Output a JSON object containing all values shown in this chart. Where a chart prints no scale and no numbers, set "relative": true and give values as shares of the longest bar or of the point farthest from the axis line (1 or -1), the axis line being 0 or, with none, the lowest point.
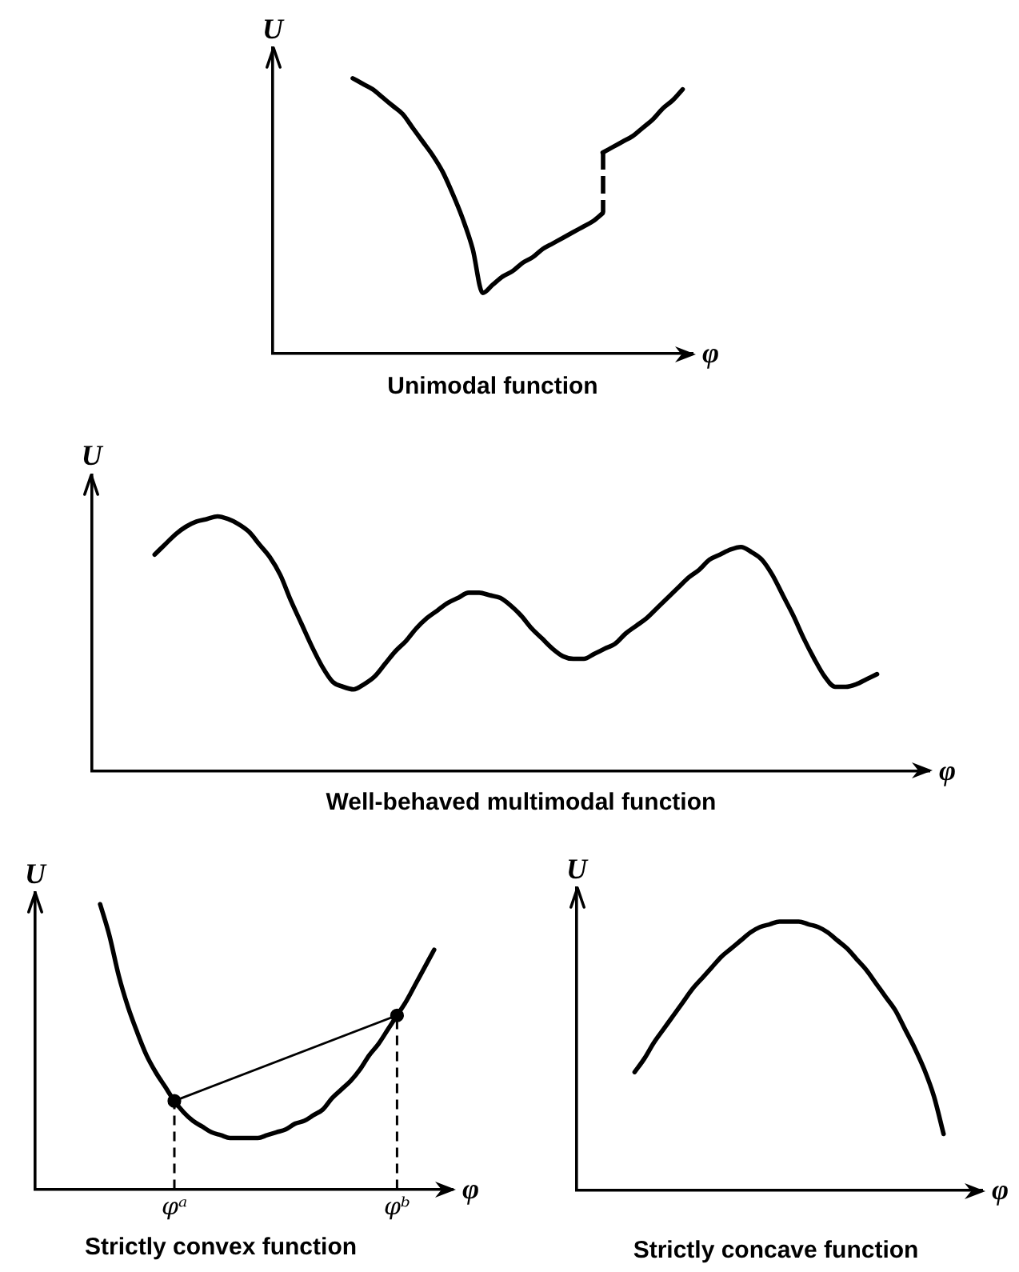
{
  "chart_data": [
    {
      "type": "line",
      "title": "Unimodal function",
      "xlabel": "φ",
      "ylabel": "U",
      "relative": true,
      "categories": [
        null,
        null,
        null,
        null,
        null,
        null,
        null,
        null,
        null,
        null,
        null,
        null,
        null,
        null,
        null,
        null,
        null,
        null,
        null,
        null,
        null,
        null,
        null,
        null,
        null,
        null,
        null,
        null,
        null,
        null,
        null,
        null,
        null,
        null,
        null,
        null,
        null,
        null,
        null,
        null,
        null,
        null,
        null
      ],
      "series": [
        {
          "color": "#000000",
          "values": [
            null,
            null,
            null,
            null,
            null,
            null,
            null,
            null,
            1,
            0.98,
            0.96,
            0.93,
            0.9,
            0.87,
            0.82,
            0.77,
            0.72,
            0.66,
            0.58,
            0.49,
            0.38,
            0.22,
            0.25,
            0.28,
            0.3,
            0.33,
            0.35,
            0.38,
            0.4,
            0.42,
            0.44,
            0.46,
            0.48,
            0.51,
            null,
            null,
            null,
            null,
            null,
            null,
            null,
            null,
            null
          ]
        },
        {
          "color": "#000000",
          "values": [
            null,
            null,
            null,
            null,
            null,
            null,
            null,
            null,
            null,
            null,
            null,
            null,
            null,
            null,
            null,
            null,
            null,
            null,
            null,
            null,
            null,
            null,
            null,
            null,
            null,
            null,
            null,
            null,
            null,
            null,
            null,
            null,
            null,
            0.73,
            0.75,
            0.77,
            0.79,
            0.82,
            0.85,
            0.89,
            0.92,
            0.96,
            null
          ]
        }
      ]
    },
    {
      "type": "line",
      "title": "Well-behaved multimodal function",
      "xlabel": "φ",
      "ylabel": "U",
      "relative": true,
      "categories": [
        null,
        null,
        null,
        null,
        null,
        null,
        null,
        null,
        null,
        null,
        null,
        null,
        null,
        null,
        null,
        null,
        null,
        null,
        null,
        null,
        null,
        null,
        null,
        null,
        null,
        null,
        null,
        null,
        null,
        null,
        null,
        null,
        null,
        null,
        null,
        null,
        null,
        null,
        null,
        null,
        null,
        null,
        null,
        null,
        null,
        null,
        null,
        null,
        null,
        null,
        null,
        null,
        null,
        null,
        null,
        null,
        null,
        null,
        null,
        null,
        null,
        null,
        null,
        null,
        null,
        null,
        null,
        null,
        null,
        null,
        null,
        null,
        null,
        null,
        null,
        null,
        null,
        null,
        null,
        null,
        null
      ],
      "series": [
        {
          "color": "#000000",
          "values": [
            null,
            null,
            null,
            null,
            null,
            null,
            0.85,
            0.89,
            0.93,
            0.96,
            0.98,
            0.99,
            1,
            0.99,
            0.97,
            0.94,
            0.89,
            0.84,
            0.77,
            0.67,
            0.58,
            0.49,
            0.41,
            0.35,
            0.33,
            0.32,
            0.34,
            0.37,
            0.42,
            0.47,
            0.51,
            0.56,
            0.6,
            0.63,
            0.66,
            0.68,
            0.7,
            0.7,
            0.69,
            0.68,
            0.65,
            0.61,
            0.56,
            0.52,
            0.48,
            0.45,
            0.44,
            0.44,
            0.46,
            0.48,
            0.5,
            0.54,
            0.57,
            0.6,
            0.64,
            0.68,
            0.72,
            0.76,
            0.79,
            0.83,
            0.85,
            0.87,
            0.88,
            0.86,
            0.83,
            0.77,
            0.69,
            0.61,
            0.52,
            0.44,
            0.37,
            0.33,
            0.33,
            0.34,
            0.36,
            0.38,
            null,
            null,
            null,
            null,
            null
          ]
        }
      ]
    },
    {
      "type": "line",
      "title": "Strictly convex function",
      "xlabel": "φ",
      "ylabel": "U",
      "relative": true,
      "tick_labels": "x",
      "categories": [
        null,
        null,
        null,
        null,
        null,
        null,
        null,
        null,
        null,
        null,
        null,
        null,
        null,
        null,
        null,
        "φᵃ",
        null,
        null,
        null,
        null,
        null,
        null,
        null,
        null,
        null,
        null,
        null,
        null,
        null,
        null,
        null,
        null,
        null,
        null,
        null,
        null,
        null,
        null,
        null,
        "φᵇ",
        null,
        null,
        null,
        null,
        null,
        null
      ],
      "series": [
        {
          "color": "#000000",
          "x": [
            "φᵃ",
            "φᵇ"
          ],
          "values": [
            0.31,
            0.61
          ],
          "marker": "circle"
        },
        {
          "color": "#000000",
          "values": [
            null,
            null,
            null,
            null,
            null,
            null,
            null,
            1,
            0.89,
            0.75,
            0.64,
            0.55,
            0.47,
            0.41,
            0.36,
            0.31,
            0.27,
            0.24,
            0.22,
            0.2,
            0.19,
            0.18,
            0.18,
            0.18,
            0.18,
            0.19,
            0.2,
            0.21,
            0.23,
            0.24,
            0.26,
            0.28,
            0.32,
            0.35,
            0.38,
            0.42,
            0.47,
            0.51,
            0.56,
            0.61,
            0.66,
            0.72,
            0.78,
            0.84,
            null,
            null
          ]
        }
      ],
      "ref_lines": [
        {
          "axis": "x",
          "value": "φᵃ",
          "line_style": "dashed",
          "color": "#000000"
        },
        {
          "axis": "x",
          "value": "φᵇ",
          "line_style": "dashed",
          "color": "#000000"
        }
      ]
    },
    {
      "type": "line",
      "title": "Strictly concave function",
      "xlabel": "φ",
      "ylabel": "U",
      "relative": true,
      "categories": [
        null,
        null,
        null,
        null,
        null,
        null,
        null,
        null,
        null,
        null,
        null,
        null,
        null,
        null,
        null,
        null,
        null,
        null,
        null,
        null,
        null,
        null,
        null,
        null,
        null,
        null,
        null,
        null,
        null,
        null,
        null,
        null,
        null,
        null,
        null,
        null,
        null,
        null,
        null,
        null,
        null,
        null,
        null
      ],
      "series": [
        {
          "color": "#000000",
          "values": [
            null,
            null,
            null,
            null,
            null,
            null,
            0.44,
            0.49,
            0.55,
            0.6,
            0.65,
            0.7,
            0.75,
            0.79,
            0.83,
            0.87,
            0.9,
            0.93,
            0.96,
            0.98,
            0.99,
            1,
            1,
            1,
            0.99,
            0.98,
            0.96,
            0.93,
            0.9,
            0.86,
            0.82,
            0.77,
            0.72,
            0.67,
            0.6,
            0.53,
            0.45,
            0.35,
            0.21,
            null,
            null,
            null,
            null
          ]
        }
      ]
    }
  ]
}
